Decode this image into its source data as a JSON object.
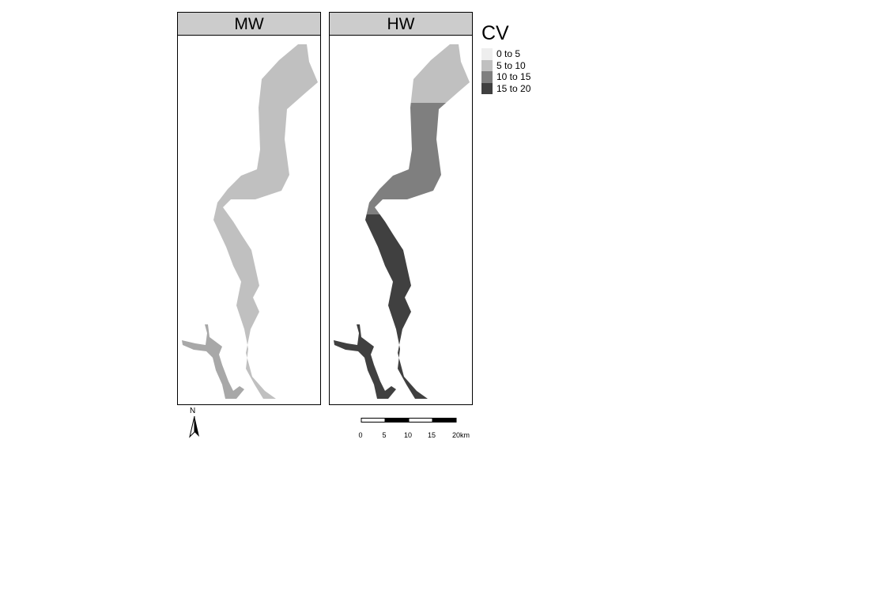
{
  "panels": [
    {
      "title": "MW",
      "fill": "#c0c0c0"
    },
    {
      "title": "HW",
      "fill_top": "#c0c0c0",
      "fill_mid": "#7f7f7f",
      "fill_bottom": "#404040"
    }
  ],
  "legend": {
    "title": "CV",
    "items": [
      {
        "label": "0 to 5",
        "color": "#eeeeee"
      },
      {
        "label": "5 to 10",
        "color": "#c0c0c0"
      },
      {
        "label": "10 to 15",
        "color": "#7f7f7f"
      },
      {
        "label": "15 to 20",
        "color": "#404040"
      }
    ]
  },
  "north_arrow": {
    "label": "N",
    "icon": "north-arrow-icon"
  },
  "scale_bar": {
    "ticks": [
      "0",
      "5",
      "10",
      "15",
      "20km"
    ]
  }
}
